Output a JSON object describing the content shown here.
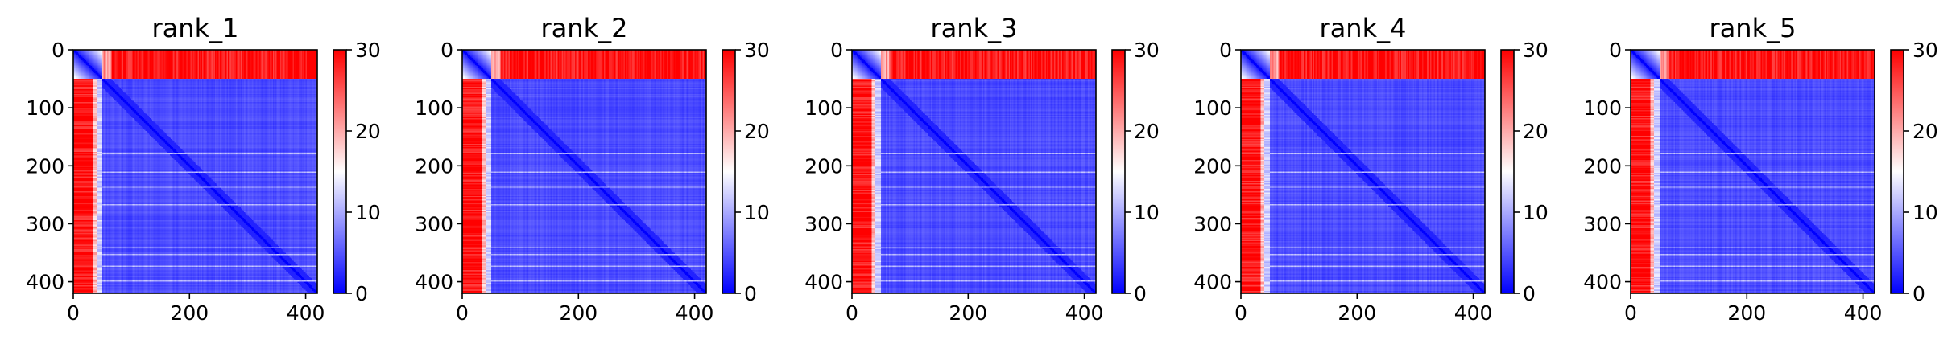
{
  "chart_data": [
    {
      "type": "heatmap",
      "title": "rank_1",
      "xlabel": "",
      "ylabel": "",
      "xlim": [
        0,
        420
      ],
      "ylim": [
        420,
        0
      ],
      "x_ticks": [
        0,
        200,
        400
      ],
      "y_ticks": [
        0,
        100,
        200,
        300,
        400
      ],
      "x_tick_labels": [
        "0",
        "200",
        "400"
      ],
      "y_tick_labels": [
        "0",
        "100",
        "200",
        "300",
        "400"
      ],
      "colorbar": {
        "min": 0,
        "max": 30,
        "ticks": [
          0,
          10,
          20,
          30
        ],
        "tick_labels": [
          "0",
          "10",
          "20",
          "30"
        ],
        "colormap": "bwr",
        "colors": [
          "#0000ff",
          "#ffffff",
          "#ff0000"
        ]
      }
    },
    {
      "type": "heatmap",
      "title": "rank_2",
      "xlabel": "",
      "ylabel": "",
      "xlim": [
        0,
        420
      ],
      "ylim": [
        420,
        0
      ],
      "x_ticks": [
        0,
        200,
        400
      ],
      "y_ticks": [
        0,
        100,
        200,
        300,
        400
      ],
      "x_tick_labels": [
        "0",
        "200",
        "400"
      ],
      "y_tick_labels": [
        "0",
        "100",
        "200",
        "300",
        "400"
      ],
      "colorbar": {
        "min": 0,
        "max": 30,
        "ticks": [
          0,
          10,
          20,
          30
        ],
        "tick_labels": [
          "0",
          "10",
          "20",
          "30"
        ],
        "colormap": "bwr",
        "colors": [
          "#0000ff",
          "#ffffff",
          "#ff0000"
        ]
      }
    },
    {
      "type": "heatmap",
      "title": "rank_3",
      "xlabel": "",
      "ylabel": "",
      "xlim": [
        0,
        420
      ],
      "ylim": [
        420,
        0
      ],
      "x_ticks": [
        0,
        200,
        400
      ],
      "y_ticks": [
        0,
        100,
        200,
        300,
        400
      ],
      "x_tick_labels": [
        "0",
        "200",
        "400"
      ],
      "y_tick_labels": [
        "0",
        "100",
        "200",
        "300",
        "400"
      ],
      "colorbar": {
        "min": 0,
        "max": 30,
        "ticks": [
          0,
          10,
          20,
          30
        ],
        "tick_labels": [
          "0",
          "10",
          "20",
          "30"
        ],
        "colormap": "bwr",
        "colors": [
          "#0000ff",
          "#ffffff",
          "#ff0000"
        ]
      }
    },
    {
      "type": "heatmap",
      "title": "rank_4",
      "xlabel": "",
      "ylabel": "",
      "xlim": [
        0,
        420
      ],
      "ylim": [
        420,
        0
      ],
      "x_ticks": [
        0,
        200,
        400
      ],
      "y_ticks": [
        0,
        100,
        200,
        300,
        400
      ],
      "x_tick_labels": [
        "0",
        "200",
        "400"
      ],
      "y_tick_labels": [
        "0",
        "100",
        "200",
        "300",
        "400"
      ],
      "colorbar": {
        "min": 0,
        "max": 30,
        "ticks": [
          0,
          10,
          20,
          30
        ],
        "tick_labels": [
          "0",
          "10",
          "20",
          "30"
        ],
        "colormap": "bwr",
        "colors": [
          "#0000ff",
          "#ffffff",
          "#ff0000"
        ]
      }
    },
    {
      "type": "heatmap",
      "title": "rank_5",
      "xlabel": "",
      "ylabel": "",
      "xlim": [
        0,
        420
      ],
      "ylim": [
        420,
        0
      ],
      "x_ticks": [
        0,
        200,
        400
      ],
      "y_ticks": [
        0,
        100,
        200,
        300,
        400
      ],
      "x_tick_labels": [
        "0",
        "200",
        "400"
      ],
      "y_tick_labels": [
        "0",
        "100",
        "200",
        "300",
        "400"
      ],
      "colorbar": {
        "min": 0,
        "max": 30,
        "ticks": [
          0,
          10,
          20,
          30
        ],
        "tick_labels": [
          "0",
          "10",
          "20",
          "30"
        ],
        "colormap": "bwr",
        "colors": [
          "#0000ff",
          "#ffffff",
          "#ff0000"
        ]
      }
    }
  ]
}
